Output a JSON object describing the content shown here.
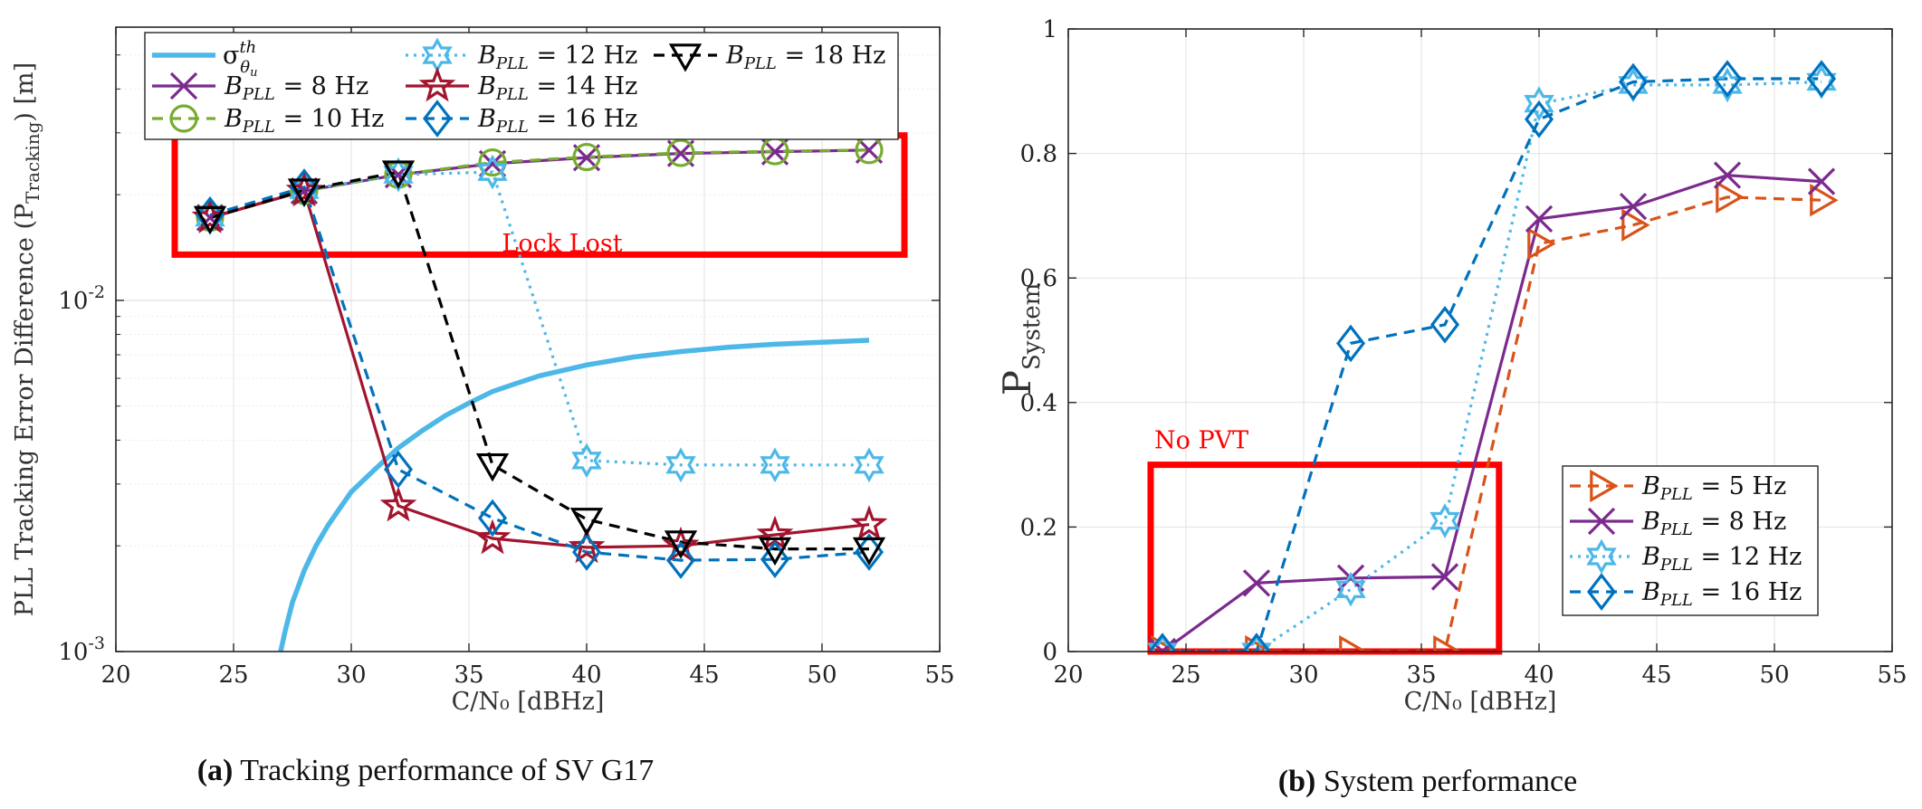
{
  "chart_data": [
    {
      "type": "line",
      "caption_letter": "(a)",
      "caption": "Tracking performance of SV G17",
      "xlabel": "C/N₀ [dBHz]",
      "ylabel": "PLL Tracking Error Difference (P",
      "ylabel_sub": "Tracking",
      "ylabel_end": ") [m]",
      "xlim": [
        20,
        55
      ],
      "ylim": [
        0.001,
        0.06
      ],
      "yscale": "log",
      "xticks": [
        20,
        25,
        30,
        35,
        40,
        45,
        50,
        55
      ],
      "yticks": [
        {
          "value": 0.001,
          "label": "10",
          "exp": "-3"
        },
        {
          "value": 0.01,
          "label": "10",
          "exp": "-2"
        }
      ],
      "grid": true,
      "legend_position": "top",
      "annotation": {
        "text": "Lock Lost",
        "color": "#ff0000",
        "box_x": [
          22.5,
          53.5
        ],
        "box_y": [
          0.0135,
          0.0295
        ]
      },
      "threshold": {
        "name_base": "σ",
        "name_sup": "th",
        "name_sub": "θ",
        "name_subsub": "u",
        "color": "#4db8e8",
        "x": [
          27,
          27.2,
          27.5,
          28,
          28.5,
          29,
          29.5,
          30,
          31,
          32,
          33,
          34,
          35,
          36,
          37,
          38,
          40,
          42,
          44,
          46,
          48,
          50,
          52
        ],
        "y": [
          0.001,
          0.00115,
          0.00138,
          0.0017,
          0.002,
          0.00228,
          0.00255,
          0.00285,
          0.0033,
          0.0038,
          0.00425,
          0.0047,
          0.0051,
          0.0055,
          0.0058,
          0.0061,
          0.00655,
          0.0069,
          0.00715,
          0.00735,
          0.0075,
          0.0076,
          0.0077
        ]
      },
      "x": [
        24,
        28,
        32,
        36,
        40,
        44,
        48,
        52
      ],
      "series": [
        {
          "name_base": "B",
          "name_sub": "PLL",
          "name_rest": " = 8 Hz",
          "color": "#7b2a8e",
          "dash": "solid",
          "marker": "x",
          "values": [
            0.0172,
            0.0205,
            0.0228,
            0.0245,
            0.0255,
            0.0262,
            0.0265,
            0.0268
          ]
        },
        {
          "name_base": "B",
          "name_sub": "PLL",
          "name_rest": " = 10 Hz",
          "color": "#77ac30",
          "dash": "dashed",
          "marker": "circle",
          "values": [
            0.0172,
            0.0205,
            0.0228,
            0.0247,
            0.0256,
            0.0263,
            0.0266,
            0.0268
          ]
        },
        {
          "name_base": "B",
          "name_sub": "PLL",
          "name_rest": " = 12 Hz",
          "color": "#4db8e8",
          "dash": "dotted",
          "marker": "hexagram",
          "values": [
            0.0172,
            0.0206,
            0.0228,
            0.0232,
            0.0035,
            0.0034,
            0.0034,
            0.0034
          ]
        },
        {
          "name_base": "B",
          "name_sub": "PLL",
          "name_rest": " = 14 Hz",
          "color": "#a2142f",
          "dash": "solid",
          "marker": "star",
          "values": [
            0.0172,
            0.0205,
            0.0026,
            0.0021,
            0.00198,
            0.002,
            0.00215,
            0.0023
          ]
        },
        {
          "name_base": "B",
          "name_sub": "PLL",
          "name_rest": " = 16 Hz",
          "color": "#0072bd",
          "dash": "dashed",
          "marker": "diamond",
          "values": [
            0.0175,
            0.021,
            0.0033,
            0.0024,
            0.00192,
            0.00182,
            0.00183,
            0.00192
          ]
        },
        {
          "name_base": "B",
          "name_sub": "PLL",
          "name_rest": " = 18 Hz",
          "color": "#000000",
          "dash": "dashed",
          "marker": "triangle-down",
          "values": [
            0.0172,
            0.0206,
            0.0232,
            0.0034,
            0.00238,
            0.00205,
            0.00196,
            0.00196
          ]
        }
      ]
    },
    {
      "type": "line",
      "caption_letter": "(b)",
      "caption": "System performance",
      "xlabel": "C/N₀ [dBHz]",
      "ylabel": "P",
      "ylabel_sub": "System",
      "xlim": [
        20,
        55
      ],
      "ylim": [
        0,
        1
      ],
      "yscale": "linear",
      "xticks": [
        20,
        25,
        30,
        35,
        40,
        45,
        50,
        55
      ],
      "yticks": [
        0,
        0.2,
        0.4,
        0.6,
        0.8,
        1
      ],
      "grid": true,
      "legend_position": "bottom-right",
      "annotation": {
        "text": "No PVT",
        "color": "#ff0000",
        "box_x": [
          23.5,
          38.3
        ],
        "box_y": [
          0,
          0.3
        ]
      },
      "x": [
        24,
        28,
        32,
        36,
        40,
        44,
        48,
        52
      ],
      "series": [
        {
          "name_base": "B",
          "name_sub": "PLL",
          "name_rest": " = 5 Hz",
          "color": "#d95319",
          "dash": "dashed",
          "marker": "triangle-right",
          "values": [
            0,
            0,
            0,
            0,
            0.655,
            0.685,
            0.73,
            0.725
          ]
        },
        {
          "name_base": "B",
          "name_sub": "PLL",
          "name_rest": " = 8 Hz",
          "color": "#7b2a8e",
          "dash": "solid",
          "marker": "x",
          "values": [
            0,
            0.11,
            0.118,
            0.12,
            0.695,
            0.715,
            0.765,
            0.755
          ]
        },
        {
          "name_base": "B",
          "name_sub": "PLL",
          "name_rest": " = 12 Hz",
          "color": "#4db8e8",
          "dash": "dotted",
          "marker": "hexagram",
          "values": [
            0,
            0,
            0.1,
            0.21,
            0.88,
            0.91,
            0.91,
            0.915
          ]
        },
        {
          "name_base": "B",
          "name_sub": "PLL",
          "name_rest": " = 16 Hz",
          "color": "#0072bd",
          "dash": "dashed",
          "marker": "diamond",
          "values": [
            0,
            0,
            0.495,
            0.525,
            0.855,
            0.915,
            0.92,
            0.92
          ]
        }
      ]
    }
  ]
}
